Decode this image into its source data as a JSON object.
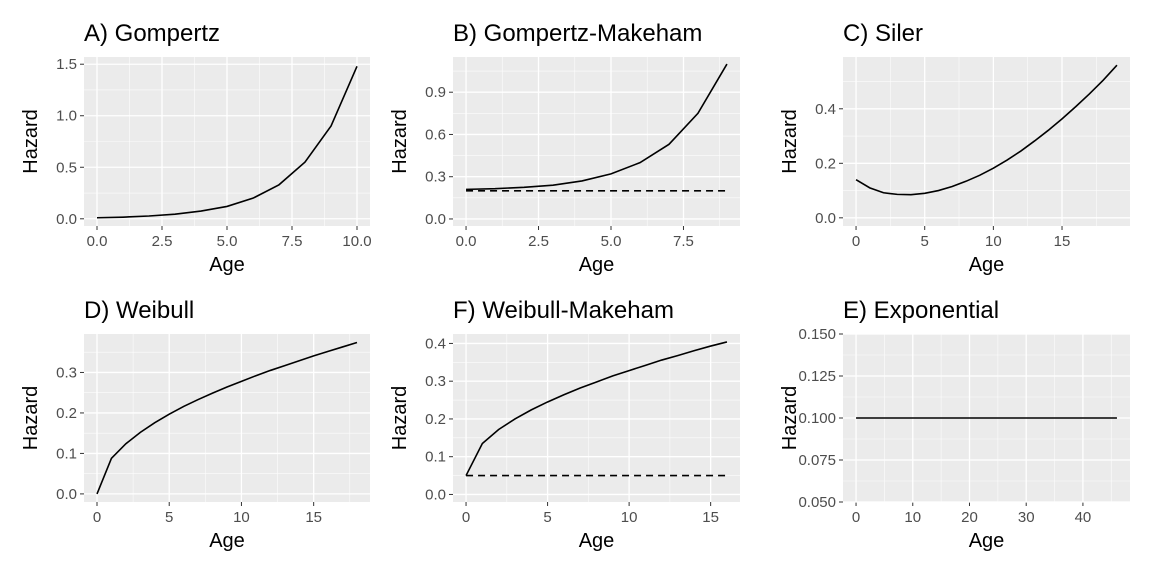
{
  "chart_data": [
    {
      "type": "line",
      "title": "A) Gompertz",
      "xlabel": "Age",
      "ylabel": "Hazard",
      "xlim": [
        -0.5,
        10.5
      ],
      "ylim": [
        -0.07,
        1.57
      ],
      "xticks": [
        0,
        2.5,
        5,
        7.5,
        10
      ],
      "xtick_labels": [
        "0.0",
        "2.5",
        "5.0",
        "7.5",
        "10.0"
      ],
      "yticks": [
        0,
        0.5,
        1,
        1.5
      ],
      "ytick_labels": [
        "0.0",
        "0.5",
        "1.0",
        "1.5"
      ],
      "grid": true,
      "series": [
        {
          "style": "solid",
          "x": [
            0,
            1,
            2,
            3,
            4,
            5,
            6,
            7,
            8,
            9,
            10
          ],
          "y": [
            0.01,
            0.016,
            0.027,
            0.045,
            0.075,
            0.12,
            0.2,
            0.33,
            0.55,
            0.9,
            1.48
          ]
        }
      ]
    },
    {
      "type": "line",
      "title": "B) Gompertz-Makeham",
      "xlabel": "Age",
      "ylabel": "Hazard",
      "xlim": [
        -0.45,
        9.45
      ],
      "ylim": [
        -0.05,
        1.15
      ],
      "xticks": [
        0,
        2.5,
        5,
        7.5
      ],
      "xtick_labels": [
        "0.0",
        "2.5",
        "5.0",
        "7.5"
      ],
      "yticks": [
        0,
        0.3,
        0.6,
        0.9
      ],
      "ytick_labels": [
        "0.0",
        "0.3",
        "0.6",
        "0.9"
      ],
      "grid": true,
      "series": [
        {
          "style": "solid",
          "x": [
            0,
            1,
            2,
            3,
            4,
            5,
            6,
            7,
            8,
            9
          ],
          "y": [
            0.21,
            0.215,
            0.225,
            0.24,
            0.27,
            0.32,
            0.4,
            0.53,
            0.75,
            1.1
          ]
        },
        {
          "style": "dashed",
          "x": [
            0,
            9
          ],
          "y": [
            0.2,
            0.2
          ]
        }
      ]
    },
    {
      "type": "line",
      "title": "C) Siler",
      "xlabel": "Age",
      "ylabel": "Hazard",
      "xlim": [
        -0.95,
        19.95
      ],
      "ylim": [
        -0.03,
        0.59
      ],
      "xticks": [
        0,
        5,
        10,
        15
      ],
      "xtick_labels": [
        "0",
        "5",
        "10",
        "15"
      ],
      "yticks": [
        0,
        0.2,
        0.4
      ],
      "ytick_labels": [
        "0.0",
        "0.2",
        "0.4"
      ],
      "grid": true,
      "series": [
        {
          "style": "solid",
          "x": [
            0,
            1,
            2,
            3,
            4,
            5,
            6,
            7,
            8,
            9,
            10,
            11,
            12,
            13,
            14,
            15,
            16,
            17,
            18,
            19
          ],
          "y": [
            0.14,
            0.11,
            0.092,
            0.086,
            0.085,
            0.09,
            0.1,
            0.115,
            0.134,
            0.156,
            0.182,
            0.212,
            0.245,
            0.282,
            0.321,
            0.363,
            0.408,
            0.455,
            0.505,
            0.56
          ]
        }
      ]
    },
    {
      "type": "line",
      "title": "D) Weibull",
      "xlabel": "Age",
      "ylabel": "Hazard",
      "xlim": [
        -0.9,
        18.9
      ],
      "ylim": [
        -0.02,
        0.395
      ],
      "xticks": [
        0,
        5,
        10,
        15
      ],
      "xtick_labels": [
        "0",
        "5",
        "10",
        "15"
      ],
      "yticks": [
        0,
        0.1,
        0.2,
        0.3
      ],
      "ytick_labels": [
        "0.0",
        "0.1",
        "0.2",
        "0.3"
      ],
      "grid": true,
      "series": [
        {
          "style": "solid",
          "x": [
            0,
            1,
            2,
            3,
            4,
            5,
            6,
            7,
            8,
            9,
            10,
            11,
            12,
            13,
            14,
            15,
            16,
            17,
            18
          ],
          "y": [
            0,
            0.088,
            0.124,
            0.152,
            0.176,
            0.197,
            0.216,
            0.233,
            0.249,
            0.264,
            0.278,
            0.292,
            0.305,
            0.317,
            0.329,
            0.341,
            0.352,
            0.363,
            0.374
          ]
        }
      ]
    },
    {
      "type": "line",
      "title": "F) Weibull-Makeham",
      "xlabel": "Age",
      "ylabel": "Hazard",
      "xlim": [
        -0.8,
        16.8
      ],
      "ylim": [
        -0.02,
        0.425
      ],
      "xticks": [
        0,
        5,
        10,
        15
      ],
      "xtick_labels": [
        "0",
        "5",
        "10",
        "15"
      ],
      "yticks": [
        0,
        0.1,
        0.2,
        0.3,
        0.4
      ],
      "ytick_labels": [
        "0.0",
        "0.1",
        "0.2",
        "0.3",
        "0.4"
      ],
      "grid": true,
      "series": [
        {
          "style": "solid",
          "x": [
            0,
            1,
            2,
            3,
            4,
            5,
            6,
            7,
            8,
            9,
            10,
            11,
            12,
            13,
            14,
            15,
            16
          ],
          "y": [
            0.05,
            0.135,
            0.172,
            0.2,
            0.224,
            0.245,
            0.264,
            0.282,
            0.298,
            0.314,
            0.328,
            0.342,
            0.356,
            0.368,
            0.381,
            0.393,
            0.404
          ]
        },
        {
          "style": "dashed",
          "x": [
            0,
            16
          ],
          "y": [
            0.05,
            0.05
          ]
        }
      ]
    },
    {
      "type": "line",
      "title": "E) Exponential",
      "xlabel": "Age",
      "ylabel": "Hazard",
      "xlim": [
        -2.3,
        48.3
      ],
      "ylim": [
        0.05,
        0.15
      ],
      "xticks": [
        0,
        10,
        20,
        30,
        40
      ],
      "xtick_labels": [
        "0",
        "10",
        "20",
        "30",
        "40"
      ],
      "yticks": [
        0.05,
        0.075,
        0.1,
        0.125,
        0.15
      ],
      "ytick_labels": [
        "0.050",
        "0.075",
        "0.100",
        "0.125",
        "0.150"
      ],
      "grid": true,
      "series": [
        {
          "style": "solid",
          "x": [
            0,
            46
          ],
          "y": [
            0.1,
            0.1
          ]
        }
      ]
    }
  ]
}
